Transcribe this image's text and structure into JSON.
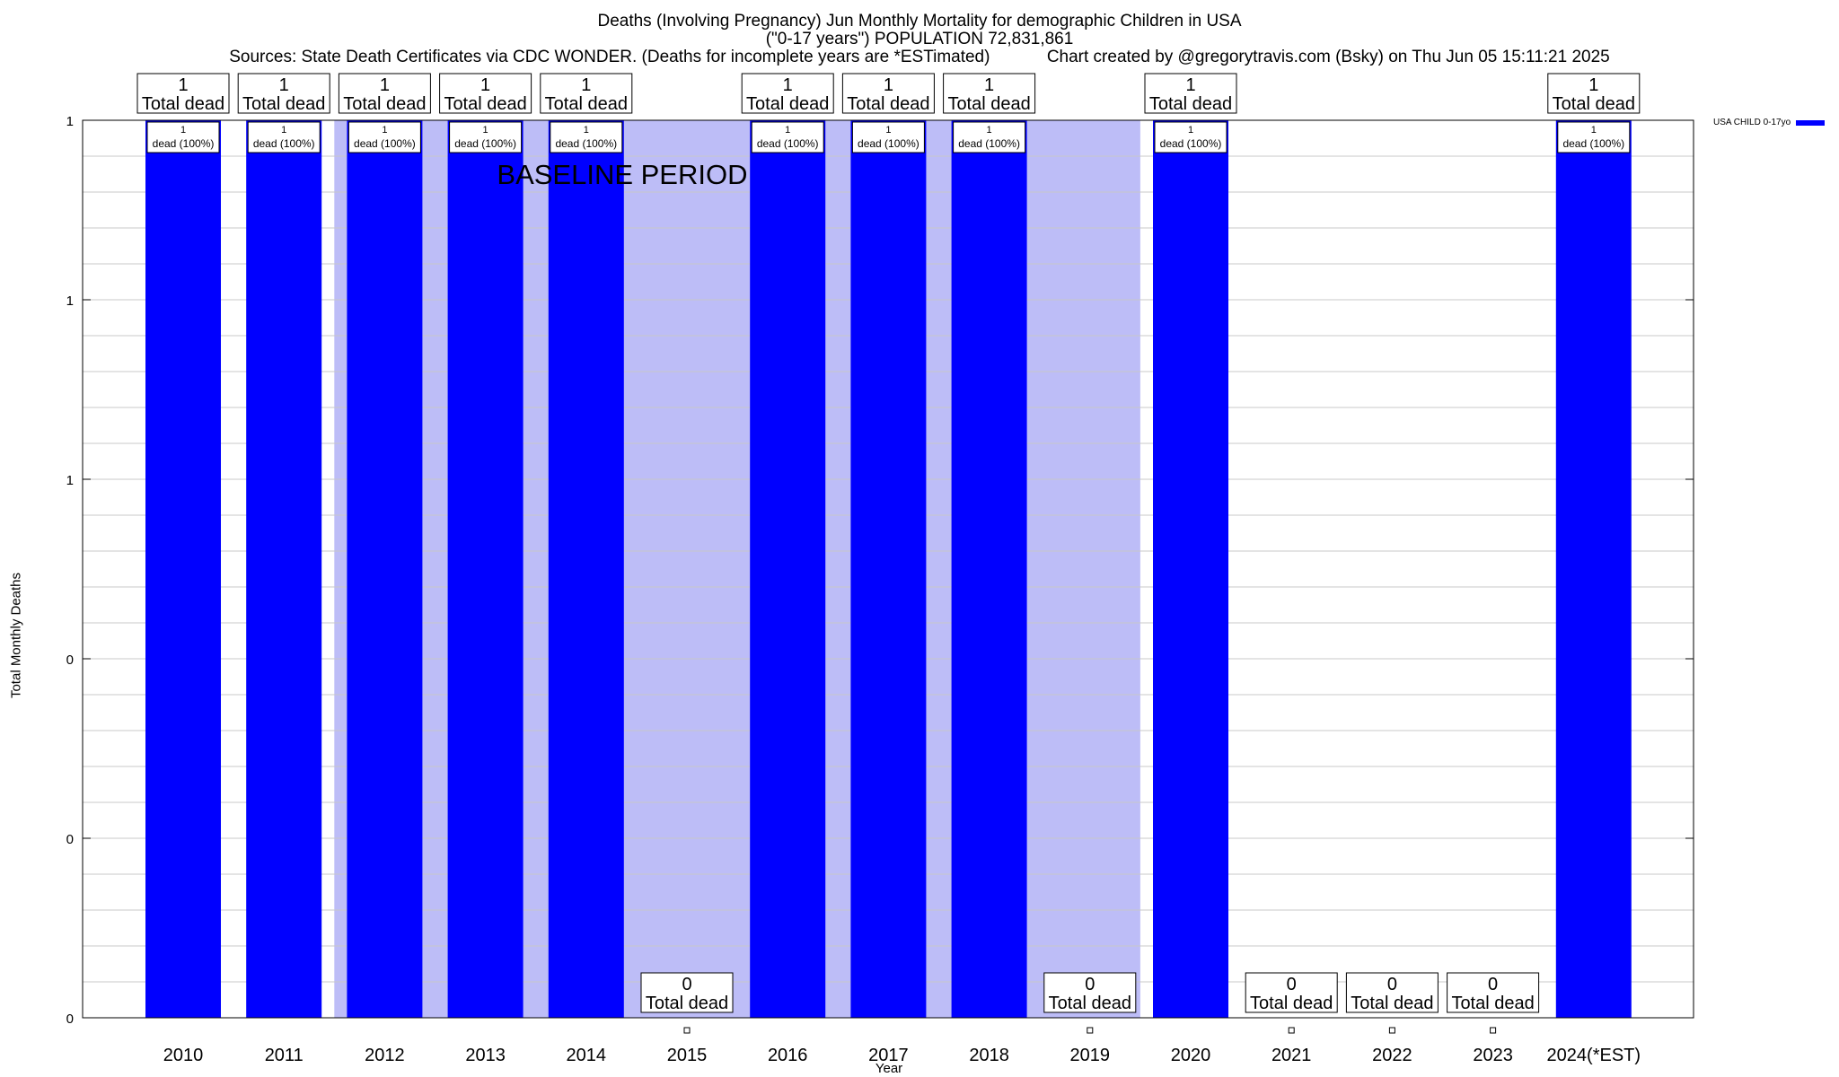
{
  "colors": {
    "bar": "#0000ff",
    "baseline_shade": "#bdbdf7",
    "grid": "#c8c8c8"
  },
  "chart_data": {
    "type": "bar",
    "title_line1": "Deaths (Involving Pregnancy) Jun Monthly Mortality for demographic Children in USA",
    "title_line2": "(\"0-17 years\") POPULATION 72,831,861",
    "sources": "Sources: State Death Certificates via CDC WONDER. (Deaths for incomplete years are *ESTimated)",
    "credit": "Chart created by @gregorytravis.com (Bsky) on Thu Jun 05 15:11:21 2025",
    "xlabel": "Year",
    "ylabel": "Total Monthly Deaths",
    "ylim": [
      0,
      1
    ],
    "ytick_labels": [
      "0",
      "0",
      "0",
      "1",
      "1",
      "1"
    ],
    "categories": [
      "2010",
      "2011",
      "2012",
      "2013",
      "2014",
      "2015",
      "2016",
      "2017",
      "2018",
      "2019",
      "2020",
      "2021",
      "2022",
      "2023",
      "2024(*EST)"
    ],
    "series": [
      {
        "name": "USA CHILD 0-17yo",
        "values": [
          1,
          1,
          1,
          1,
          1,
          0,
          1,
          1,
          1,
          0,
          1,
          0,
          0,
          0,
          1
        ]
      }
    ],
    "total_label_values": [
      "1",
      "1",
      "1",
      "1",
      "1",
      "0",
      "1",
      "1",
      "1",
      "0",
      "1",
      "0",
      "0",
      "0",
      "1"
    ],
    "total_label_suffix": "Total dead",
    "inner_label_value": "1",
    "inner_label_suffix": "dead (100%)",
    "baseline_label": "BASELINE PERIOD",
    "baseline_years": [
      "2012",
      "2013",
      "2014",
      "2015",
      "2016",
      "2017",
      "2018",
      "2019"
    ],
    "grid": true,
    "legend_position": "top-right"
  }
}
